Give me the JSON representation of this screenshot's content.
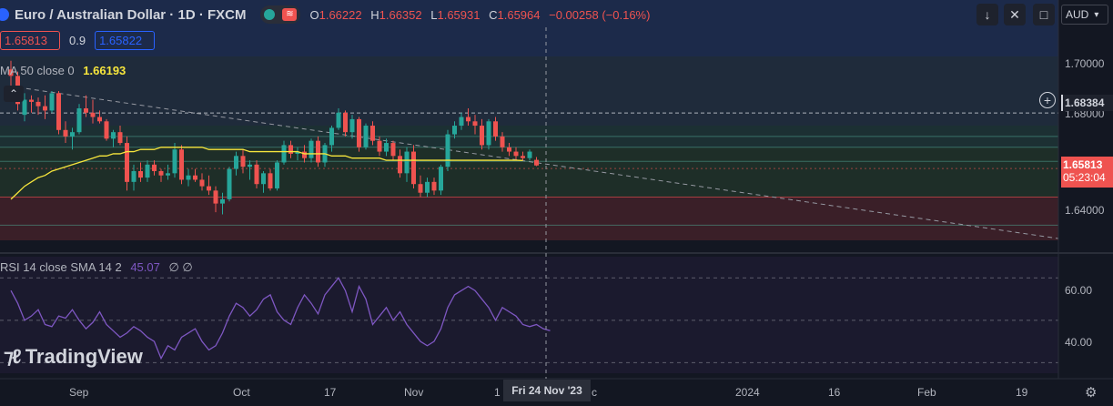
{
  "header": {
    "symbol_title": "Euro / Australian Dollar · 1D · FXCM",
    "pill_icon_label": "≋",
    "ohlc": [
      {
        "key": "O",
        "value": "1.66222"
      },
      {
        "key": "H",
        "value": "1.66352"
      },
      {
        "key": "L",
        "value": "1.65931"
      },
      {
        "key": "C",
        "value": "1.65964"
      }
    ],
    "change": "−0.00258 (−0.16%)",
    "bid": "1.65813",
    "spread": "0.9",
    "ask": "1.65822",
    "currency": "AUD",
    "buttons": [
      "↓",
      "✕",
      "□"
    ]
  },
  "indicators": {
    "sma_name": "MA 50 close 0",
    "sma_value": "1.66193",
    "rsi_name": "RSI 14 close SMA 14 2",
    "rsi_value": "45.07",
    "rsi_extra": "∅ ∅"
  },
  "price_axis": {
    "labels": [
      "1.70000",
      "1.68000",
      "1.64000"
    ],
    "level_label": "1.68384",
    "last_price": "1.65813",
    "countdown": "05:23:04"
  },
  "rsi_axis": {
    "labels": [
      "60.00",
      "40.00"
    ]
  },
  "time_axis": {
    "labels": [
      "Sep",
      "Oct",
      "17",
      "Nov",
      "1",
      "c",
      "2024",
      "16",
      "Feb",
      "19"
    ],
    "crosshair_label": "Fri 24 Nov '23"
  },
  "branding": {
    "logo_text": "TradingView"
  },
  "colors": {
    "up": "#26a69a",
    "down": "#ef5350",
    "sma": "#f7e63c",
    "rsi": "#7e57c2",
    "accent": "#2962ff"
  },
  "chart_data": [
    {
      "type": "candlestick",
      "title": "Euro / Australian Dollar · 1D · FXCM",
      "ylim": [
        1.625,
        1.71
      ],
      "candles": [
        {
          "o": 1.704,
          "h": 1.708,
          "l": 1.694,
          "c": 1.701
        },
        {
          "o": 1.701,
          "h": 1.703,
          "l": 1.685,
          "c": 1.688
        },
        {
          "o": 1.683,
          "h": 1.693,
          "l": 1.68,
          "c": 1.69
        },
        {
          "o": 1.69,
          "h": 1.692,
          "l": 1.684,
          "c": 1.689
        },
        {
          "o": 1.689,
          "h": 1.691,
          "l": 1.683,
          "c": 1.687
        },
        {
          "o": 1.687,
          "h": 1.692,
          "l": 1.681,
          "c": 1.685
        },
        {
          "o": 1.685,
          "h": 1.694,
          "l": 1.684,
          "c": 1.693
        },
        {
          "o": 1.693,
          "h": 1.694,
          "l": 1.674,
          "c": 1.676
        },
        {
          "o": 1.676,
          "h": 1.68,
          "l": 1.67,
          "c": 1.673
        },
        {
          "o": 1.673,
          "h": 1.677,
          "l": 1.667,
          "c": 1.675
        },
        {
          "o": 1.675,
          "h": 1.688,
          "l": 1.674,
          "c": 1.686
        },
        {
          "o": 1.686,
          "h": 1.692,
          "l": 1.682,
          "c": 1.684
        },
        {
          "o": 1.684,
          "h": 1.69,
          "l": 1.679,
          "c": 1.682
        },
        {
          "o": 1.682,
          "h": 1.685,
          "l": 1.679,
          "c": 1.68
        },
        {
          "o": 1.68,
          "h": 1.681,
          "l": 1.671,
          "c": 1.672
        },
        {
          "o": 1.672,
          "h": 1.676,
          "l": 1.668,
          "c": 1.675
        },
        {
          "o": 1.675,
          "h": 1.678,
          "l": 1.669,
          "c": 1.67
        },
        {
          "o": 1.67,
          "h": 1.673,
          "l": 1.648,
          "c": 1.652
        },
        {
          "o": 1.652,
          "h": 1.66,
          "l": 1.648,
          "c": 1.657
        },
        {
          "o": 1.657,
          "h": 1.661,
          "l": 1.652,
          "c": 1.654
        },
        {
          "o": 1.654,
          "h": 1.662,
          "l": 1.652,
          "c": 1.66
        },
        {
          "o": 1.66,
          "h": 1.662,
          "l": 1.655,
          "c": 1.657
        },
        {
          "o": 1.657,
          "h": 1.658,
          "l": 1.652,
          "c": 1.655
        },
        {
          "o": 1.655,
          "h": 1.66,
          "l": 1.653,
          "c": 1.656
        },
        {
          "o": 1.656,
          "h": 1.67,
          "l": 1.654,
          "c": 1.667
        },
        {
          "o": 1.667,
          "h": 1.669,
          "l": 1.651,
          "c": 1.653
        },
        {
          "o": 1.653,
          "h": 1.658,
          "l": 1.65,
          "c": 1.655
        },
        {
          "o": 1.655,
          "h": 1.658,
          "l": 1.652,
          "c": 1.653
        },
        {
          "o": 1.653,
          "h": 1.656,
          "l": 1.648,
          "c": 1.65
        },
        {
          "o": 1.65,
          "h": 1.655,
          "l": 1.646,
          "c": 1.648
        },
        {
          "o": 1.648,
          "h": 1.65,
          "l": 1.638,
          "c": 1.642
        },
        {
          "o": 1.642,
          "h": 1.647,
          "l": 1.637,
          "c": 1.644
        },
        {
          "o": 1.644,
          "h": 1.659,
          "l": 1.643,
          "c": 1.658
        },
        {
          "o": 1.658,
          "h": 1.666,
          "l": 1.655,
          "c": 1.664
        },
        {
          "o": 1.664,
          "h": 1.667,
          "l": 1.656,
          "c": 1.659
        },
        {
          "o": 1.659,
          "h": 1.662,
          "l": 1.653,
          "c": 1.66
        },
        {
          "o": 1.66,
          "h": 1.662,
          "l": 1.649,
          "c": 1.651
        },
        {
          "o": 1.651,
          "h": 1.657,
          "l": 1.647,
          "c": 1.656
        },
        {
          "o": 1.656,
          "h": 1.658,
          "l": 1.648,
          "c": 1.649
        },
        {
          "o": 1.649,
          "h": 1.662,
          "l": 1.648,
          "c": 1.661
        },
        {
          "o": 1.661,
          "h": 1.671,
          "l": 1.66,
          "c": 1.669
        },
        {
          "o": 1.669,
          "h": 1.671,
          "l": 1.663,
          "c": 1.665
        },
        {
          "o": 1.665,
          "h": 1.668,
          "l": 1.662,
          "c": 1.666
        },
        {
          "o": 1.666,
          "h": 1.669,
          "l": 1.661,
          "c": 1.663
        },
        {
          "o": 1.663,
          "h": 1.672,
          "l": 1.661,
          "c": 1.671
        },
        {
          "o": 1.671,
          "h": 1.673,
          "l": 1.659,
          "c": 1.661
        },
        {
          "o": 1.661,
          "h": 1.67,
          "l": 1.659,
          "c": 1.669
        },
        {
          "o": 1.669,
          "h": 1.678,
          "l": 1.666,
          "c": 1.677
        },
        {
          "o": 1.677,
          "h": 1.686,
          "l": 1.676,
          "c": 1.684
        },
        {
          "o": 1.684,
          "h": 1.685,
          "l": 1.673,
          "c": 1.675
        },
        {
          "o": 1.675,
          "h": 1.683,
          "l": 1.672,
          "c": 1.681
        },
        {
          "o": 1.681,
          "h": 1.682,
          "l": 1.666,
          "c": 1.668
        },
        {
          "o": 1.668,
          "h": 1.679,
          "l": 1.667,
          "c": 1.678
        },
        {
          "o": 1.678,
          "h": 1.68,
          "l": 1.669,
          "c": 1.671
        },
        {
          "o": 1.671,
          "h": 1.673,
          "l": 1.664,
          "c": 1.666
        },
        {
          "o": 1.666,
          "h": 1.672,
          "l": 1.664,
          "c": 1.67
        },
        {
          "o": 1.67,
          "h": 1.671,
          "l": 1.662,
          "c": 1.664
        },
        {
          "o": 1.664,
          "h": 1.667,
          "l": 1.654,
          "c": 1.656
        },
        {
          "o": 1.656,
          "h": 1.668,
          "l": 1.652,
          "c": 1.666
        },
        {
          "o": 1.666,
          "h": 1.669,
          "l": 1.649,
          "c": 1.651
        },
        {
          "o": 1.651,
          "h": 1.655,
          "l": 1.645,
          "c": 1.647
        },
        {
          "o": 1.647,
          "h": 1.654,
          "l": 1.645,
          "c": 1.652
        },
        {
          "o": 1.652,
          "h": 1.654,
          "l": 1.646,
          "c": 1.648
        },
        {
          "o": 1.648,
          "h": 1.66,
          "l": 1.646,
          "c": 1.659
        },
        {
          "o": 1.659,
          "h": 1.676,
          "l": 1.657,
          "c": 1.674
        },
        {
          "o": 1.674,
          "h": 1.68,
          "l": 1.672,
          "c": 1.678
        },
        {
          "o": 1.678,
          "h": 1.684,
          "l": 1.676,
          "c": 1.682
        },
        {
          "o": 1.682,
          "h": 1.686,
          "l": 1.678,
          "c": 1.68
        },
        {
          "o": 1.68,
          "h": 1.683,
          "l": 1.674,
          "c": 1.678
        },
        {
          "o": 1.678,
          "h": 1.681,
          "l": 1.667,
          "c": 1.669
        },
        {
          "o": 1.669,
          "h": 1.681,
          "l": 1.667,
          "c": 1.68
        },
        {
          "o": 1.68,
          "h": 1.682,
          "l": 1.671,
          "c": 1.673
        },
        {
          "o": 1.673,
          "h": 1.675,
          "l": 1.666,
          "c": 1.668
        },
        {
          "o": 1.668,
          "h": 1.67,
          "l": 1.664,
          "c": 1.666
        },
        {
          "o": 1.666,
          "h": 1.668,
          "l": 1.662,
          "c": 1.664
        },
        {
          "o": 1.664,
          "h": 1.666,
          "l": 1.662,
          "c": 1.663
        },
        {
          "o": 1.663,
          "h": 1.667,
          "l": 1.662,
          "c": 1.666
        },
        {
          "o": 1.6622,
          "h": 1.6635,
          "l": 1.6593,
          "c": 1.6596
        }
      ],
      "sma": {
        "name": "MA 50 close 0",
        "values": [
          1.644,
          1.647,
          1.65,
          1.652,
          1.654,
          1.655,
          1.657,
          1.658,
          1.659,
          1.66,
          1.661,
          1.662,
          1.663,
          1.664,
          1.664,
          1.665,
          1.665,
          1.666,
          1.666,
          1.667,
          1.667,
          1.667,
          1.668,
          1.668,
          1.668,
          1.668,
          1.668,
          1.668,
          1.668,
          1.667,
          1.667,
          1.667,
          1.667,
          1.667,
          1.667,
          1.666,
          1.666,
          1.666,
          1.666,
          1.666,
          1.666,
          1.666,
          1.666,
          1.665,
          1.665,
          1.665,
          1.665,
          1.664,
          1.664,
          1.664,
          1.663,
          1.663,
          1.663,
          1.663,
          1.663,
          1.662,
          1.662,
          1.662,
          1.662,
          1.662,
          1.662,
          1.662,
          1.662,
          1.662,
          1.662,
          1.662,
          1.662,
          1.662,
          1.662,
          1.662,
          1.662,
          1.662,
          1.662,
          1.662,
          1.662,
          1.6619
        ]
      },
      "levels": [
        1.68384,
        1.673,
        1.668,
        1.6615,
        1.6582,
        1.645,
        1.632
      ]
    },
    {
      "type": "line",
      "title": "RSI 14 close SMA 14 2",
      "ylim": [
        25,
        80
      ],
      "values": [
        64,
        58,
        50,
        52,
        55,
        48,
        47,
        52,
        51,
        55,
        50,
        46,
        49,
        54,
        48,
        45,
        42,
        44,
        47,
        45,
        42,
        40,
        32,
        38,
        36,
        42,
        44,
        46,
        40,
        36,
        38,
        44,
        52,
        58,
        56,
        52,
        55,
        60,
        62,
        54,
        50,
        48,
        56,
        62,
        58,
        53,
        62,
        66,
        70,
        64,
        54,
        66,
        60,
        48,
        52,
        56,
        50,
        54,
        48,
        44,
        40,
        38,
        40,
        46,
        56,
        62,
        64,
        66,
        64,
        60,
        56,
        50,
        56,
        54,
        52,
        48,
        47,
        48,
        46,
        45.07
      ]
    }
  ]
}
